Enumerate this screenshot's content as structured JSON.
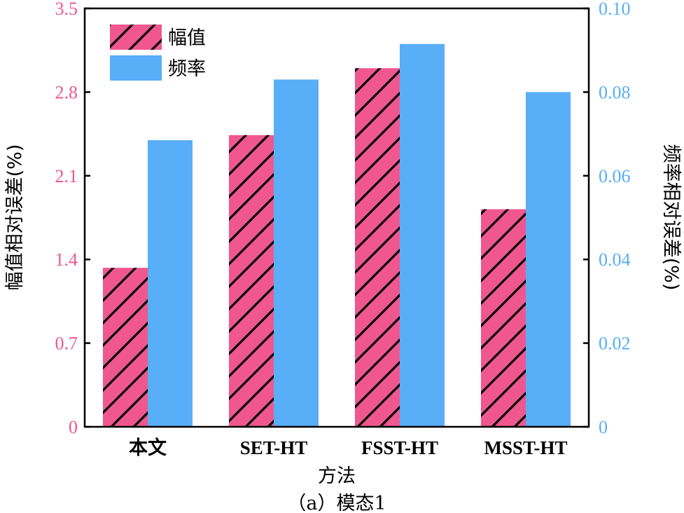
{
  "chart_data": {
    "type": "bar",
    "categories": [
      "本文",
      "SET-HT",
      "FSST-HT",
      "MSST-HT"
    ],
    "series": [
      {
        "name": "幅值",
        "axis": "left",
        "values": [
          1.33,
          2.44,
          3.0,
          1.82
        ]
      },
      {
        "name": "频率",
        "axis": "right",
        "values": [
          0.0685,
          0.083,
          0.0915,
          0.08
        ]
      }
    ],
    "xlabel": "方法",
    "ylabel_left": "幅值相对误差(%)",
    "ylabel_right": "频率相对误差(%)",
    "ylim_left": [
      0,
      3.5
    ],
    "ylim_right": [
      0,
      0.1
    ],
    "yticks_left": [
      "0",
      "0.7",
      "1.4",
      "2.1",
      "2.8",
      "3.5"
    ],
    "yticks_right": [
      "0",
      "0.02",
      "0.04",
      "0.06",
      "0.08",
      "0.10"
    ],
    "caption": "（a）模态1",
    "legend_position": "top-left",
    "grid": false,
    "colors": {
      "amplitude": "#f0578f",
      "frequency": "#58aef7",
      "left_axis": "#f0578f",
      "right_axis": "#58aef7",
      "hatch": "#000000"
    }
  }
}
